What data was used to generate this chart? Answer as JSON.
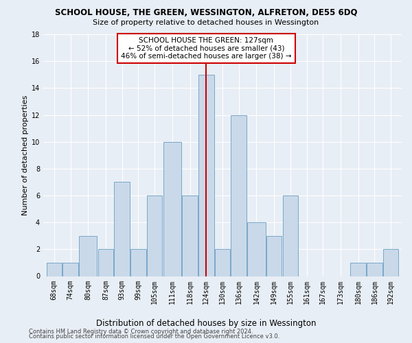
{
  "title": "SCHOOL HOUSE, THE GREEN, WESSINGTON, ALFRETON, DE55 6DQ",
  "subtitle": "Size of property relative to detached houses in Wessington",
  "xlabel": "Distribution of detached houses by size in Wessington",
  "ylabel": "Number of detached properties",
  "bin_labels": [
    "68sqm",
    "74sqm",
    "80sqm",
    "87sqm",
    "93sqm",
    "99sqm",
    "105sqm",
    "111sqm",
    "118sqm",
    "124sqm",
    "130sqm",
    "136sqm",
    "142sqm",
    "149sqm",
    "155sqm",
    "161sqm",
    "167sqm",
    "173sqm",
    "180sqm",
    "186sqm",
    "192sqm"
  ],
  "bar_heights": [
    1,
    1,
    3,
    2,
    7,
    2,
    6,
    10,
    6,
    15,
    2,
    12,
    4,
    3,
    6,
    0,
    0,
    0,
    1,
    1,
    2
  ],
  "bar_color": "#c9d9ea",
  "bar_edge_color": "#7aa8c8",
  "reference_line_x": 127,
  "bin_edges": [
    68,
    74,
    80,
    87,
    93,
    99,
    105,
    111,
    118,
    124,
    130,
    136,
    142,
    149,
    155,
    161,
    167,
    173,
    180,
    186,
    192,
    198
  ],
  "vline_color": "#cc0000",
  "annotation_text": "SCHOOL HOUSE THE GREEN: 127sqm\n← 52% of detached houses are smaller (43)\n46% of semi-detached houses are larger (38) →",
  "annotation_box_color": "#ffffff",
  "annotation_box_edge_color": "#cc0000",
  "ylim": [
    0,
    18
  ],
  "yticks": [
    0,
    2,
    4,
    6,
    8,
    10,
    12,
    14,
    16,
    18
  ],
  "background_color": "#e8eef5",
  "plot_background_color": "#e8eef5",
  "footer_line1": "Contains HM Land Registry data © Crown copyright and database right 2024.",
  "footer_line2": "Contains public sector information licensed under the Open Government Licence v3.0.",
  "title_fontsize": 8.5,
  "subtitle_fontsize": 8.0,
  "ylabel_fontsize": 8.0,
  "xlabel_fontsize": 8.5,
  "tick_fontsize": 7.0,
  "annotation_fontsize": 7.5,
  "footer_fontsize": 6.0
}
